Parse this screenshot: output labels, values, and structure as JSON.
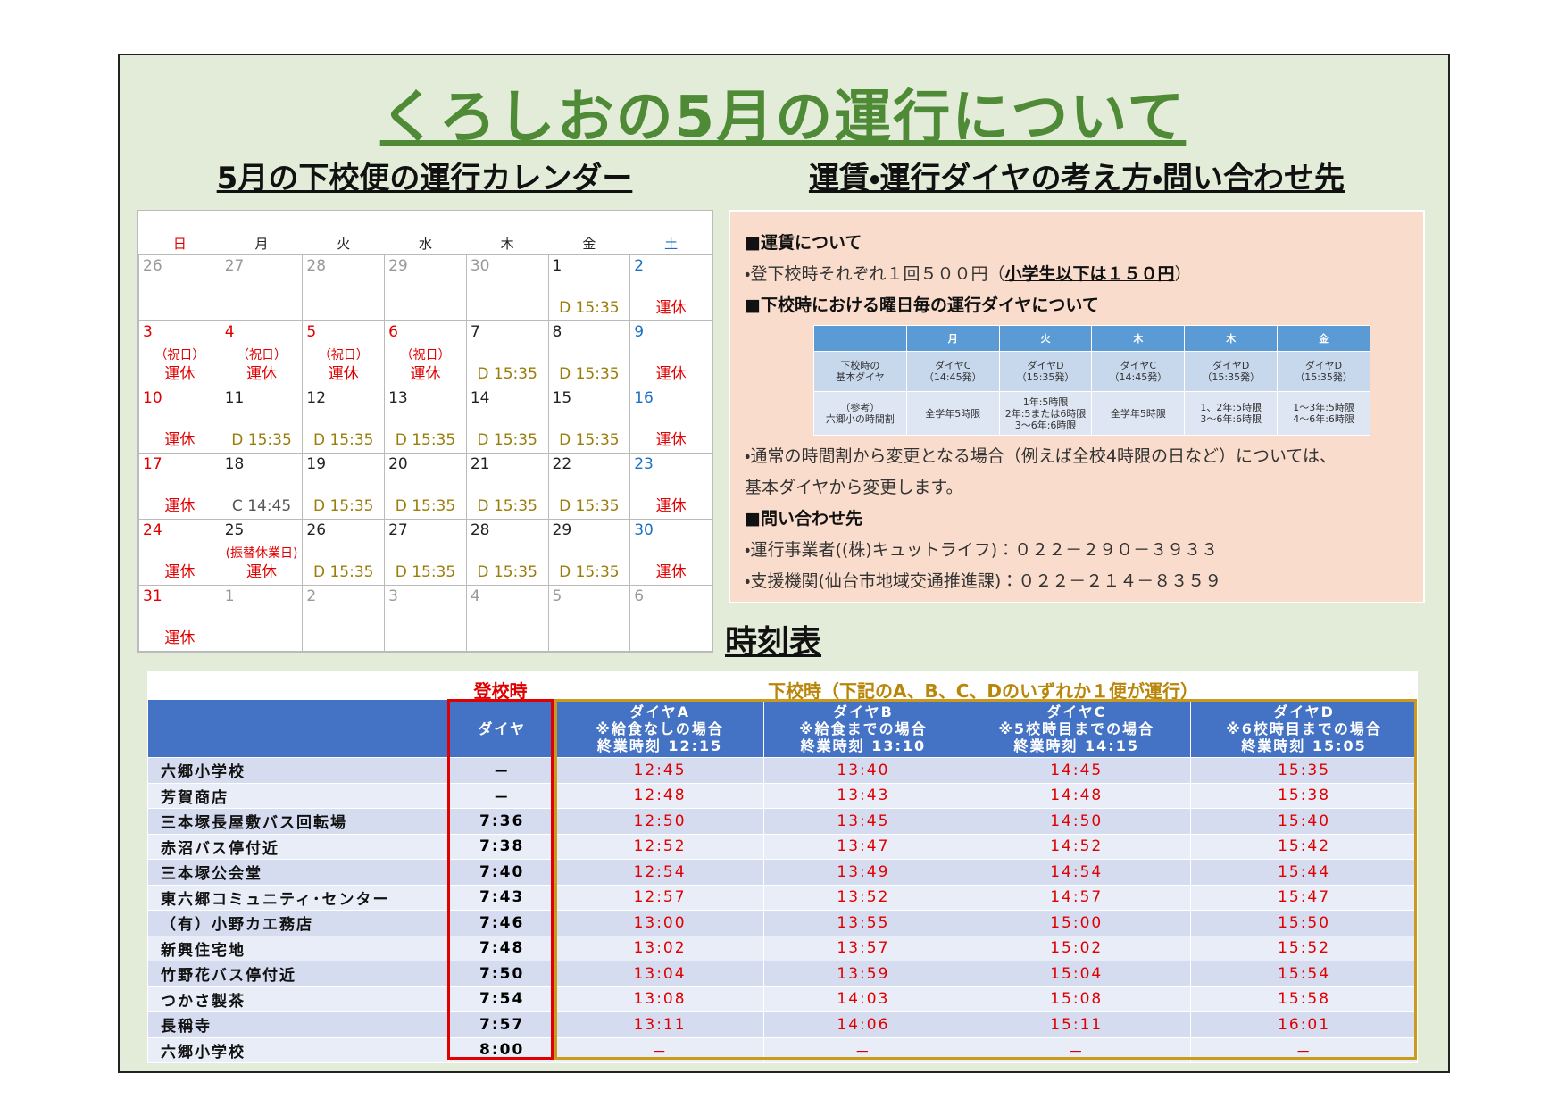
{
  "title": "くろしおの5月の運行について",
  "calendar": {
    "heading": "5月の下校便の運行カレンダー",
    "weekdays": [
      "日",
      "月",
      "火",
      "水",
      "木",
      "金",
      "土"
    ],
    "weeks": [
      [
        {
          "day": 26
        },
        {
          "day": 27
        },
        {
          "day": 28
        },
        {
          "day": 29
        },
        {
          "day": 30
        },
        {
          "day": 1,
          "service": "D 15:35",
          "color": "#9a7d0a"
        },
        {
          "day": 2,
          "service": "運休",
          "color": "#e00000"
        }
      ],
      [
        {
          "day": 3,
          "note": "（祝日）",
          "service": "運休",
          "color": "#e00000",
          "holiday": true
        },
        {
          "day": 4,
          "note": "（祝日）",
          "service": "運休",
          "color": "#e00000",
          "holiday": true
        },
        {
          "day": 5,
          "note": "（祝日）",
          "service": "運休",
          "color": "#e00000",
          "holiday": true
        },
        {
          "day": 6,
          "note": "（祝日）",
          "service": "運休",
          "color": "#e00000",
          "holiday": true
        },
        {
          "day": 7,
          "service": "D 15:35",
          "color": "#9a7d0a"
        },
        {
          "day": 8,
          "service": "D 15:35",
          "color": "#9a7d0a"
        },
        {
          "day": 9,
          "service": "運休",
          "color": "#e00000"
        }
      ],
      [
        {
          "day": 10,
          "service": "運休",
          "color": "#e00000"
        },
        {
          "day": 11,
          "service": "D 15:35",
          "color": "#9a7d0a"
        },
        {
          "day": 12,
          "service": "D 15:35",
          "color": "#9a7d0a"
        },
        {
          "day": 13,
          "service": "D 15:35",
          "color": "#9a7d0a"
        },
        {
          "day": 14,
          "service": "D 15:35",
          "color": "#9a7d0a"
        },
        {
          "day": 15,
          "service": "D 15:35",
          "color": "#9a7d0a"
        },
        {
          "day": 16,
          "service": "運休",
          "color": "#e00000"
        }
      ],
      [
        {
          "day": 17,
          "service": "運休",
          "color": "#e00000"
        },
        {
          "day": 18,
          "service": "C 14:45",
          "color": "#555555"
        },
        {
          "day": 19,
          "service": "D 15:35",
          "color": "#9a7d0a"
        },
        {
          "day": 20,
          "service": "D 15:35",
          "color": "#9a7d0a"
        },
        {
          "day": 21,
          "service": "D 15:35",
          "color": "#9a7d0a"
        },
        {
          "day": 22,
          "service": "D 15:35",
          "color": "#9a7d0a"
        },
        {
          "day": 23,
          "service": "運休",
          "color": "#e00000"
        }
      ],
      [
        {
          "day": 24,
          "service": "運休",
          "color": "#e00000"
        },
        {
          "day": 25,
          "note": "(振替休業日)",
          "service": "運休",
          "color": "#e00000"
        },
        {
          "day": 26,
          "service": "D 15:35",
          "color": "#9a7d0a"
        },
        {
          "day": 27,
          "service": "D 15:35",
          "color": "#9a7d0a"
        },
        {
          "day": 28,
          "service": "D 15:35",
          "color": "#9a7d0a"
        },
        {
          "day": 29,
          "service": "D 15:35",
          "color": "#9a7d0a"
        },
        {
          "day": 30,
          "service": "運休",
          "color": "#e00000"
        }
      ],
      [
        {
          "day": 31,
          "service": "運休",
          "color": "#e00000"
        },
        {
          "day": 1
        },
        {
          "day": 2
        },
        {
          "day": 3
        },
        {
          "day": 4
        },
        {
          "day": 5
        },
        {
          "day": 6
        }
      ]
    ]
  },
  "info": {
    "heading": "運賃・運行ダイヤの考え方・問い合わせ先",
    "fare_heading": "■運賃について",
    "fare_line": [
      "・登下校時それぞれ１回５００円（",
      "小学生以下は１５０円",
      "）"
    ],
    "diagram_heading": "■下校時における曜日毎の運行ダイヤについて",
    "diagram_table": {
      "header": [
        "",
        "月",
        "火",
        "木",
        "木",
        "金"
      ],
      "rows": [
        [
          "下校時の\n基本ダイヤ",
          "ダイヤC\n（14:45発）",
          "ダイヤD\n（15:35発）",
          "ダイヤC\n（14:45発）",
          "ダイヤD\n（15:35発）",
          "ダイヤD\n（15:35発）"
        ],
        [
          "（参考）\n六郷小の時間割",
          "全学年5時限",
          "1年:5時限\n2年:5または6時限\n3～6年:6時限",
          "全学年5時限",
          "1、2年:5時限\n3～6年:6時限",
          "1～3年:5時限\n4～6年:6時限"
        ]
      ]
    },
    "note": "・通常の時間割から変更となる場合（例えば全校4時限の日など）については、\n基本ダイヤから変更します。",
    "contact_heading": "■問い合わせ先",
    "contacts": [
      "・運行事業者((株)キュットライフ)：０２２－２９０－３９３３",
      "・支援機関(仙台市地域交通推進課)：０２２－２１４－８３５９"
    ]
  },
  "timetable": {
    "heading": "時刻表",
    "morning_label": "登校時",
    "afternoon_label": "下校時（下記のA、B、C、Dのいずれか１便が運行）",
    "columns": [
      "",
      "ダイヤ",
      "ダイヤA\n※給食なしの場合\n終業時刻 12:15",
      "ダイヤB\n※給食までの場合\n終業時刻 13:10",
      "ダイヤC\n※5校時目までの場合\n終業時刻 14:15",
      "ダイヤD\n※6校時目までの場合\n終業時刻 15:05"
    ],
    "rows": [
      [
        "六郷小学校",
        "－",
        "12:45",
        "13:40",
        "14:45",
        "15:35"
      ],
      [
        "芳賀商店",
        "－",
        "12:48",
        "13:43",
        "14:48",
        "15:38"
      ],
      [
        "三本塚長屋敷バス回転場",
        "7:36",
        "12:50",
        "13:45",
        "14:50",
        "15:40"
      ],
      [
        "赤沼バス停付近",
        "7:38",
        "12:52",
        "13:47",
        "14:52",
        "15:42"
      ],
      [
        "三本塚公会堂",
        "7:40",
        "12:54",
        "13:49",
        "14:54",
        "15:44"
      ],
      [
        "東六郷コミュニティ･センター",
        "7:43",
        "12:57",
        "13:52",
        "14:57",
        "15:47"
      ],
      [
        "（有）小野カエ務店",
        "7:46",
        "13:00",
        "13:55",
        "15:00",
        "15:50"
      ],
      [
        "新興住宅地",
        "7:48",
        "13:02",
        "13:57",
        "15:02",
        "15:52"
      ],
      [
        "竹野花バス停付近",
        "7:50",
        "13:04",
        "13:59",
        "15:04",
        "15:54"
      ],
      [
        "つかさ製茶",
        "7:54",
        "13:08",
        "14:03",
        "15:08",
        "15:58"
      ],
      [
        "長稱寺",
        "7:57",
        "13:11",
        "14:06",
        "15:11",
        "16:01"
      ],
      [
        "六郷小学校",
        "8:00",
        "－",
        "－",
        "－",
        "－"
      ]
    ]
  }
}
